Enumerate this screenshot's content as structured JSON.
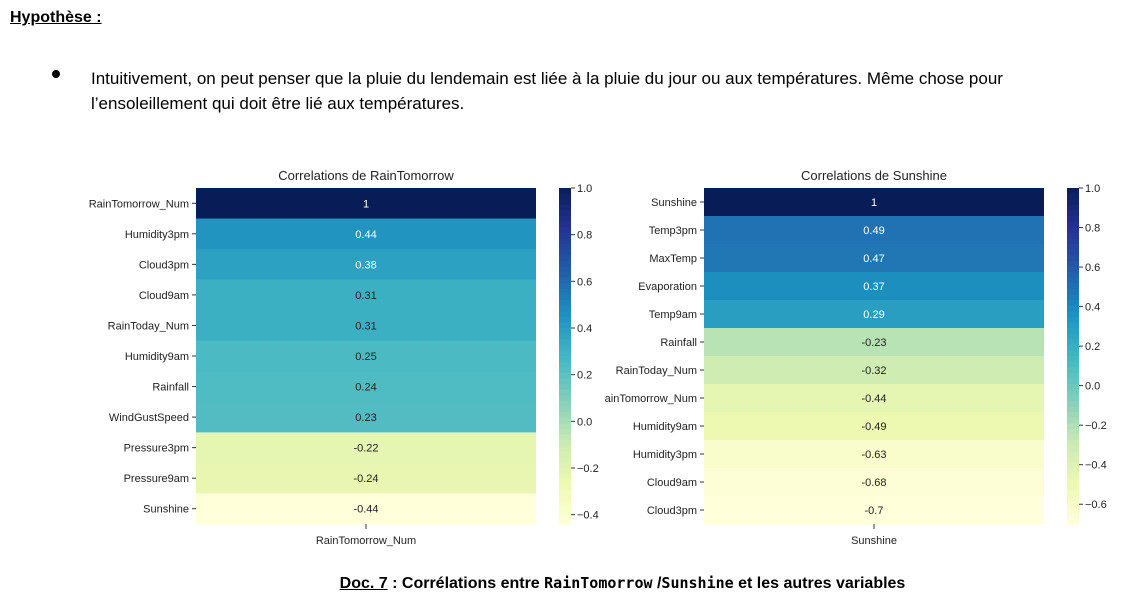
{
  "heading": "Hypothèse :",
  "bullet": "Intuitivement, on peut penser que la pluie du lendemain est liée à la pluie du jour ou aux températures. Même chose pour l’ensoleillement qui doit être lié aux températures.",
  "caption": {
    "doc_ref": "Doc. 7",
    "sep": " : Corrélations entre ",
    "var1": "RainTomorrow",
    "slash": " /",
    "var2": "Sunshine",
    "tail": " et les autres variables"
  },
  "colorscale": "YlGnBu",
  "chart_data": [
    {
      "type": "heatmap",
      "title": "Correlations de RainTomorrow",
      "xlabel": "RainTomorrow_Num",
      "categories": [
        "RainTomorrow_Num",
        "Humidity3pm",
        "Cloud3pm",
        "Cloud9am",
        "RainToday_Num",
        "Humidity9am",
        "Rainfall",
        "WindGustSpeed",
        "Pressure3pm",
        "Pressure9am",
        "Sunshine"
      ],
      "values": [
        1,
        0.44,
        0.38,
        0.31,
        0.31,
        0.25,
        0.24,
        0.23,
        -0.22,
        -0.24,
        -0.44
      ],
      "labels": [
        "1",
        "0.44",
        "0.38",
        "0.31",
        "0.31",
        "0.25",
        "0.24",
        "0.23",
        "-0.22",
        "-0.24",
        "-0.44"
      ],
      "colorbar": {
        "min": -0.44,
        "max": 1.0,
        "ticks": [
          1.0,
          0.8,
          0.6,
          0.4,
          0.2,
          0.0,
          -0.2,
          -0.4
        ],
        "tick_labels": [
          "1.0",
          "0.8",
          "0.6",
          "0.4",
          "0.2",
          "0.0",
          "−0.2",
          "−0.4"
        ]
      }
    },
    {
      "type": "heatmap",
      "title": "Correlations de Sunshine",
      "xlabel": "Sunshine",
      "categories": [
        "Sunshine",
        "Temp3pm",
        "MaxTemp",
        "Evaporation",
        "Temp9am",
        "Rainfall",
        "RainToday_Num",
        "RainTomorrow_Num",
        "Humidity9am",
        "Humidity3pm",
        "Cloud9am",
        "Cloud3pm"
      ],
      "values": [
        1,
        0.49,
        0.47,
        0.37,
        0.29,
        -0.23,
        -0.32,
        -0.44,
        -0.49,
        -0.63,
        -0.68,
        -0.7
      ],
      "labels": [
        "1",
        "0.49",
        "0.47",
        "0.37",
        "0.29",
        "-0.23",
        "-0.32",
        "-0.44",
        "-0.49",
        "-0.63",
        "-0.68",
        "-0.7"
      ],
      "colorbar": {
        "min": -0.7,
        "max": 1.0,
        "ticks": [
          1.0,
          0.8,
          0.6,
          0.4,
          0.2,
          0.0,
          -0.2,
          -0.4,
          -0.6
        ],
        "tick_labels": [
          "1.0",
          "0.8",
          "0.6",
          "0.4",
          "0.2",
          "0.0",
          "−0.2",
          "−0.4",
          "−0.6"
        ]
      }
    }
  ]
}
